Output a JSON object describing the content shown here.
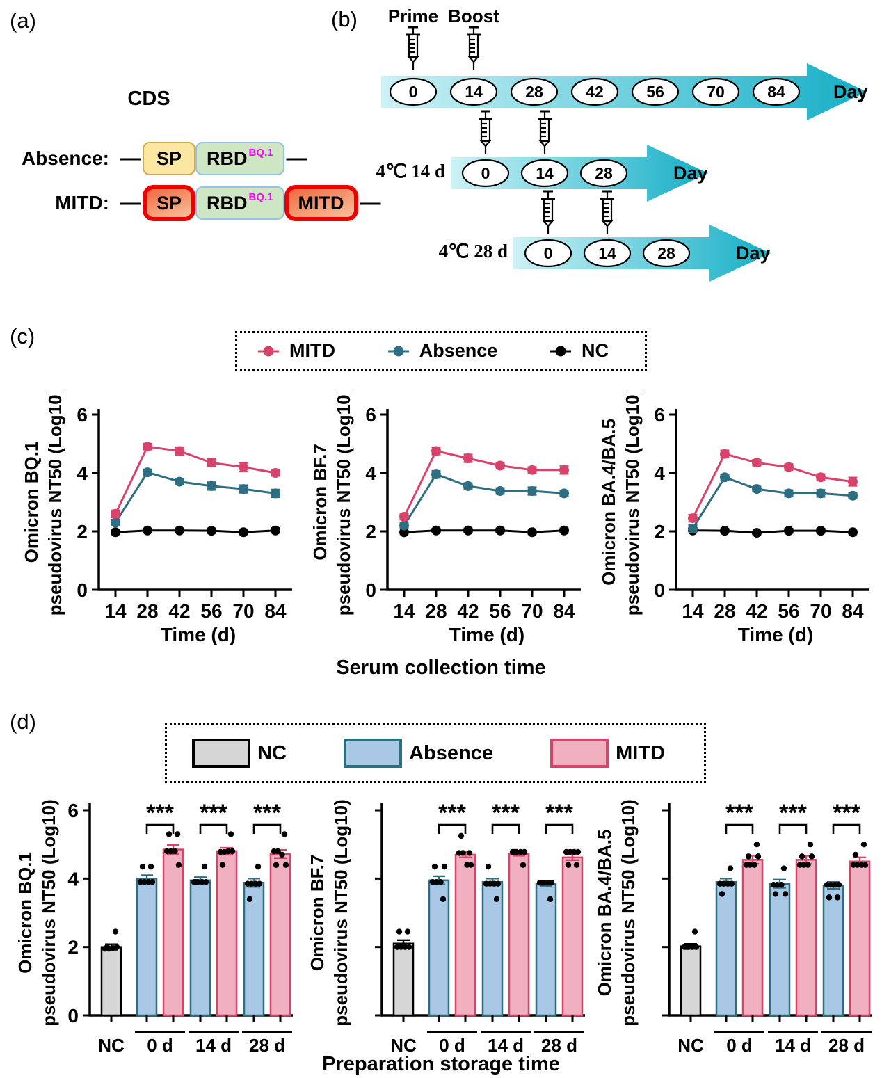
{
  "colors": {
    "mitd": "#d8436b",
    "mitd_fill": "#f0b0c0",
    "absence": "#2d6e82",
    "absence_fill": "#a9c8e5",
    "nc": "#000000",
    "nc_fill": "#d6d6d6",
    "arrow_light": "#cdf2f6",
    "arrow_dark": "#14aec6",
    "sp_fill": "#fbe7a1",
    "sp_border": "#cfa94d",
    "rbd_fill": "#cfe6c4",
    "rbd_border": "#93c3e6",
    "red_border": "#ee0000",
    "red_fill_dark": "#f0683f",
    "red_fill_light": "#f9c29c",
    "sup_color": "#ff00ff"
  },
  "panel_a": {
    "label": "(a)",
    "title": "CDS",
    "rows": [
      {
        "name": "Absence:",
        "boxes": [
          {
            "text": "SP",
            "style": "sp"
          },
          {
            "text": "RBD",
            "sup": "BQ.1",
            "style": "rbd"
          }
        ]
      },
      {
        "name": "MITD:",
        "boxes": [
          {
            "text": "SP",
            "style": "red"
          },
          {
            "text": "RBD",
            "sup": "BQ.1",
            "style": "rbd"
          },
          {
            "text": "MITD",
            "style": "red"
          }
        ]
      }
    ]
  },
  "panel_b": {
    "label": "(b)",
    "injection_labels": [
      "Prime",
      "Boost"
    ],
    "timelines": [
      {
        "label": "",
        "days": [
          "0",
          "14",
          "28",
          "42",
          "56",
          "70",
          "84"
        ],
        "day_label": "Day"
      },
      {
        "label": "4℃ 14 d",
        "days": [
          "0",
          "14",
          "28"
        ],
        "day_label": "Day"
      },
      {
        "label": "4℃ 28 d",
        "days": [
          "0",
          "14",
          "28"
        ],
        "day_label": "Day"
      }
    ]
  },
  "panel_c": {
    "label": "(c)",
    "legend": [
      {
        "name": "MITD",
        "color_key": "mitd"
      },
      {
        "name": "Absence",
        "color_key": "absence"
      },
      {
        "name": "NC",
        "color_key": "nc"
      }
    ],
    "caption": "Serum collection time"
  },
  "panel_d": {
    "label": "(d)",
    "legend": [
      {
        "name": "NC",
        "fill_key": "nc_fill",
        "border_key": "nc"
      },
      {
        "name": "Absence",
        "fill_key": "absence_fill",
        "border_key": "absence"
      },
      {
        "name": "MITD",
        "fill_key": "mitd_fill",
        "border_key": "mitd"
      }
    ],
    "caption": "Preparation storage time"
  },
  "chart_data": [
    {
      "id": "c-bq1",
      "type": "line",
      "panel": "c",
      "ylabel_lines": [
        "Omicron BQ.1",
        "pseudovirus NT50 (Log10)"
      ],
      "xlabel": "Time (d)",
      "x": [
        "14",
        "28",
        "42",
        "56",
        "70",
        "84"
      ],
      "ylim": [
        0,
        6
      ],
      "yticks": [
        0,
        2,
        4,
        6
      ],
      "grid": false,
      "series": [
        {
          "name": "NC",
          "color_key": "nc",
          "values": [
            1.97,
            2.03,
            2.03,
            2.02,
            1.97,
            2.03
          ],
          "err": [
            0.05,
            0.05,
            0.07,
            0.08,
            0.05,
            0.08
          ]
        },
        {
          "name": "Absence",
          "color_key": "absence",
          "values": [
            2.3,
            4.02,
            3.7,
            3.55,
            3.45,
            3.3
          ],
          "err": [
            0.1,
            0.1,
            0.09,
            0.13,
            0.13,
            0.13
          ]
        },
        {
          "name": "MITD",
          "color_key": "mitd",
          "values": [
            2.6,
            4.9,
            4.75,
            4.35,
            4.2,
            4.0
          ],
          "err": [
            0.12,
            0.1,
            0.13,
            0.13,
            0.15,
            0.1
          ]
        }
      ]
    },
    {
      "id": "c-bf7",
      "type": "line",
      "panel": "c",
      "ylabel_lines": [
        "Omicron BF.7",
        "pseudovirus NT50 (Log10)"
      ],
      "xlabel": "Time (d)",
      "x": [
        "14",
        "28",
        "42",
        "56",
        "70",
        "84"
      ],
      "ylim": [
        0,
        6
      ],
      "yticks": [
        0,
        2,
        4,
        6
      ],
      "grid": false,
      "series": [
        {
          "name": "NC",
          "color_key": "nc",
          "values": [
            1.97,
            2.03,
            2.03,
            2.03,
            1.97,
            2.03
          ],
          "err": [
            0.05,
            0.06,
            0.07,
            0.07,
            0.05,
            0.07
          ]
        },
        {
          "name": "Absence",
          "color_key": "absence",
          "values": [
            2.2,
            3.95,
            3.55,
            3.38,
            3.38,
            3.3
          ],
          "err": [
            0.1,
            0.12,
            0.1,
            0.1,
            0.13,
            0.1
          ]
        },
        {
          "name": "MITD",
          "color_key": "mitd",
          "values": [
            2.5,
            4.75,
            4.5,
            4.25,
            4.1,
            4.1
          ],
          "err": [
            0.1,
            0.12,
            0.13,
            0.1,
            0.1,
            0.13
          ]
        }
      ]
    },
    {
      "id": "c-ba45",
      "type": "line",
      "panel": "c",
      "ylabel_lines": [
        "Omicron BA.4/BA.5",
        "pseudovirus NT50 (Log10)"
      ],
      "xlabel": "Time (d)",
      "x": [
        "14",
        "28",
        "42",
        "56",
        "70",
        "84"
      ],
      "ylim": [
        0,
        6
      ],
      "yticks": [
        0,
        2,
        4,
        6
      ],
      "grid": false,
      "series": [
        {
          "name": "NC",
          "color_key": "nc",
          "values": [
            2.03,
            2.02,
            1.95,
            2.02,
            2.02,
            1.97
          ],
          "err": [
            0.06,
            0.06,
            0.05,
            0.07,
            0.07,
            0.05
          ]
        },
        {
          "name": "Absence",
          "color_key": "absence",
          "values": [
            2.1,
            3.85,
            3.45,
            3.3,
            3.3,
            3.22
          ],
          "err": [
            0.12,
            0.09,
            0.08,
            0.11,
            0.12,
            0.1
          ]
        },
        {
          "name": "MITD",
          "color_key": "mitd",
          "values": [
            2.45,
            4.65,
            4.35,
            4.2,
            3.85,
            3.7
          ],
          "err": [
            0.12,
            0.12,
            0.1,
            0.1,
            0.11,
            0.14
          ]
        }
      ]
    },
    {
      "id": "d-bq1",
      "type": "bar",
      "panel": "d",
      "ylabel_lines": [
        "Omicron BQ.1",
        "pseudovirus NT50 (Log10)"
      ],
      "ylim": [
        0,
        6
      ],
      "yticks": [
        0,
        2,
        4,
        6
      ],
      "show_ytick_labels": true,
      "groups": [
        {
          "label": "NC",
          "overline": false,
          "bars": [
            {
              "series": "NC",
              "value": 2.0,
              "err": 0.08,
              "dots": [
                1.95,
                1.95,
                1.97,
                2.0,
                2.0,
                2.45
              ]
            }
          ]
        },
        {
          "label": "0 d",
          "overline": true,
          "sig": "***",
          "bars": [
            {
              "series": "Absence",
              "value": 4.0,
              "err": 0.1,
              "dots": [
                3.9,
                3.9,
                3.9,
                3.9,
                4.35,
                4.35
              ]
            },
            {
              "series": "MITD",
              "value": 4.85,
              "err": 0.13,
              "dots": [
                4.8,
                4.8,
                4.8,
                4.4,
                5.3,
                5.3
              ]
            }
          ]
        },
        {
          "label": "14 d",
          "overline": true,
          "sig": "***",
          "bars": [
            {
              "series": "Absence",
              "value": 3.95,
              "err": 0.09,
              "dots": [
                3.9,
                3.9,
                3.9,
                3.9,
                3.9,
                4.35
              ]
            },
            {
              "series": "MITD",
              "value": 4.8,
              "err": 0.1,
              "dots": [
                4.78,
                4.78,
                4.8,
                4.8,
                4.4,
                5.3
              ]
            }
          ]
        },
        {
          "label": "28 d",
          "overline": true,
          "sig": "***",
          "bars": [
            {
              "series": "Absence",
              "value": 3.88,
              "err": 0.12,
              "dots": [
                3.85,
                3.85,
                3.85,
                3.85,
                3.4,
                4.35
              ]
            },
            {
              "series": "MITD",
              "value": 4.72,
              "err": 0.12,
              "dots": [
                4.8,
                4.8,
                4.7,
                4.4,
                4.4,
                5.3
              ]
            }
          ]
        }
      ]
    },
    {
      "id": "d-bf7",
      "type": "bar",
      "panel": "d",
      "ylabel_lines": [
        "Omicron BF.7",
        "pseudovirus NT50 (Log10)"
      ],
      "ylim": [
        0,
        6
      ],
      "yticks": [
        0,
        2,
        4,
        6
      ],
      "show_ytick_labels": false,
      "groups": [
        {
          "label": "NC",
          "overline": false,
          "bars": [
            {
              "series": "NC",
              "value": 2.1,
              "err": 0.1,
              "dots": [
                2.0,
                2.0,
                2.0,
                2.0,
                2.45,
                2.45
              ]
            }
          ]
        },
        {
          "label": "0 d",
          "overline": true,
          "sig": "***",
          "bars": [
            {
              "series": "Absence",
              "value": 3.95,
              "err": 0.12,
              "dots": [
                3.9,
                3.9,
                3.9,
                4.35,
                4.35,
                3.4
              ]
            },
            {
              "series": "MITD",
              "value": 4.7,
              "err": 0.08,
              "dots": [
                4.75,
                4.75,
                4.4,
                4.4,
                5.25,
                4.75
              ]
            }
          ]
        },
        {
          "label": "14 d",
          "overline": true,
          "sig": "***",
          "bars": [
            {
              "series": "Absence",
              "value": 3.9,
              "err": 0.1,
              "dots": [
                3.85,
                3.85,
                3.85,
                3.85,
                4.35,
                3.4
              ]
            },
            {
              "series": "MITD",
              "value": 4.72,
              "err": 0.05,
              "dots": [
                4.78,
                4.78,
                4.78,
                4.78,
                4.78,
                4.4
              ]
            }
          ]
        },
        {
          "label": "28 d",
          "overline": true,
          "sig": "***",
          "bars": [
            {
              "series": "Absence",
              "value": 3.85,
              "err": 0.06,
              "dots": [
                3.88,
                3.88,
                3.88,
                3.88,
                3.88,
                3.4
              ]
            },
            {
              "series": "MITD",
              "value": 4.62,
              "err": 0.08,
              "dots": [
                4.78,
                4.78,
                4.78,
                4.78,
                4.4,
                4.4
              ]
            }
          ]
        }
      ]
    },
    {
      "id": "d-ba45",
      "type": "bar",
      "panel": "d",
      "ylabel_lines": [
        "Omicron BA.4/BA.5",
        "pseudovirus NT50 (Log10)"
      ],
      "ylim": [
        0,
        6
      ],
      "yticks": [
        0,
        2,
        4,
        6
      ],
      "show_ytick_labels": false,
      "groups": [
        {
          "label": "NC",
          "overline": false,
          "bars": [
            {
              "series": "NC",
              "value": 2.02,
              "err": 0.07,
              "dots": [
                2.0,
                2.0,
                2.0,
                2.0,
                2.0,
                2.45
              ]
            }
          ]
        },
        {
          "label": "0 d",
          "overline": true,
          "sig": "***",
          "bars": [
            {
              "series": "Absence",
              "value": 3.9,
              "err": 0.1,
              "dots": [
                3.85,
                3.85,
                3.85,
                3.85,
                3.55,
                4.3
              ]
            },
            {
              "series": "MITD",
              "value": 4.55,
              "err": 0.12,
              "dots": [
                4.4,
                4.4,
                4.4,
                4.65,
                4.65,
                5.0
              ]
            }
          ]
        },
        {
          "label": "14 d",
          "overline": true,
          "sig": "***",
          "bars": [
            {
              "series": "Absence",
              "value": 3.85,
              "err": 0.12,
              "dots": [
                3.82,
                3.82,
                3.82,
                3.55,
                3.55,
                4.3
              ]
            },
            {
              "series": "MITD",
              "value": 4.55,
              "err": 0.12,
              "dots": [
                4.4,
                4.4,
                4.4,
                4.65,
                4.65,
                5.0
              ]
            }
          ]
        },
        {
          "label": "28 d",
          "overline": true,
          "sig": "***",
          "bars": [
            {
              "series": "Absence",
              "value": 3.8,
              "err": 0.1,
              "dots": [
                3.82,
                3.82,
                3.82,
                3.82,
                3.45,
                3.45
              ]
            },
            {
              "series": "MITD",
              "value": 4.5,
              "err": 0.12,
              "dots": [
                4.4,
                4.4,
                4.4,
                4.4,
                4.7,
                5.0
              ]
            }
          ]
        }
      ]
    }
  ]
}
